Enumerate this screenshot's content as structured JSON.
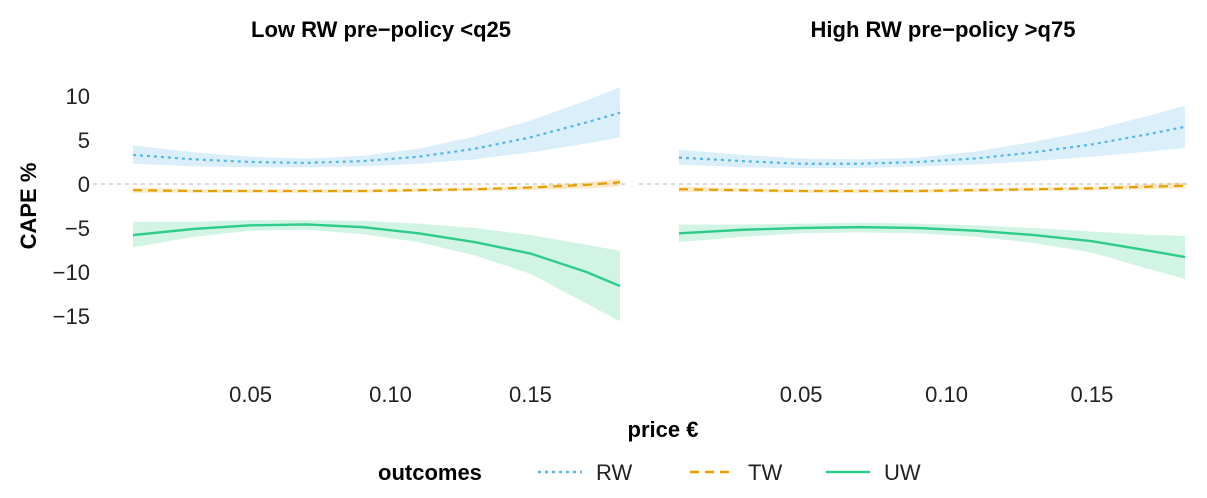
{
  "chart_data": {
    "type": "line",
    "xlabel": "price €",
    "ylabel": "CAPE %",
    "xlim": [
      0.008,
      0.182
    ],
    "ylim": [
      -20,
      11
    ],
    "x_ticks": [
      0.05,
      0.1,
      0.15
    ],
    "x_tick_labels": [
      "0.05",
      "0.10",
      "0.15"
    ],
    "y_ticks": [
      10,
      5,
      0,
      -5,
      -10,
      -15
    ],
    "y_tick_labels": [
      "10",
      "5",
      "0",
      "−5",
      "−10",
      "−15"
    ],
    "reference_line": 0,
    "grid": false,
    "legend": {
      "title": "outcomes",
      "position": "bottom",
      "entries": [
        {
          "name": "RW",
          "color": "#56B4E9",
          "linestyle": "dotted"
        },
        {
          "name": "TW",
          "color": "#E69F00",
          "linestyle": "dashed"
        },
        {
          "name": "UW",
          "color": "#2ECC8A",
          "linestyle": "solid"
        }
      ]
    },
    "panels": [
      {
        "title": "Low RW pre−policy <q25",
        "x": [
          0.008,
          0.03,
          0.05,
          0.07,
          0.09,
          0.11,
          0.13,
          0.15,
          0.17,
          0.182
        ],
        "series": [
          {
            "name": "RW",
            "values": [
              3.3,
              2.8,
              2.5,
              2.4,
              2.6,
              3.1,
              4.0,
              5.3,
              7.0,
              8.1
            ],
            "lower": [
              2.3,
              2.0,
              1.9,
              1.9,
              2.0,
              2.3,
              2.8,
              3.6,
              4.6,
              5.3
            ],
            "upper": [
              4.4,
              3.6,
              3.1,
              2.9,
              3.2,
              4.0,
              5.4,
              7.2,
              9.5,
              11.0
            ]
          },
          {
            "name": "TW",
            "values": [
              -0.7,
              -0.8,
              -0.8,
              -0.8,
              -0.8,
              -0.7,
              -0.6,
              -0.4,
              -0.1,
              0.2
            ],
            "lower": [
              -1.0,
              -1.0,
              -1.0,
              -1.0,
              -1.0,
              -0.9,
              -0.8,
              -0.7,
              -0.5,
              -0.3
            ],
            "upper": [
              -0.4,
              -0.6,
              -0.6,
              -0.6,
              -0.6,
              -0.5,
              -0.4,
              -0.2,
              0.2,
              0.6
            ]
          },
          {
            "name": "UW",
            "values": [
              -5.8,
              -5.1,
              -4.7,
              -4.6,
              -4.9,
              -5.6,
              -6.6,
              -7.9,
              -10.0,
              -11.6
            ],
            "lower": [
              -7.2,
              -6.0,
              -5.3,
              -5.2,
              -5.7,
              -6.6,
              -8.1,
              -10.2,
              -13.6,
              -15.6
            ],
            "upper": [
              -4.3,
              -4.3,
              -4.1,
              -4.1,
              -4.2,
              -4.5,
              -5.0,
              -5.8,
              -6.9,
              -7.6
            ]
          }
        ]
      },
      {
        "title": "High RW pre−policy >q75",
        "x": [
          0.008,
          0.03,
          0.05,
          0.07,
          0.09,
          0.11,
          0.13,
          0.15,
          0.17,
          0.182
        ],
        "series": [
          {
            "name": "RW",
            "values": [
              3.0,
              2.6,
              2.3,
              2.3,
              2.5,
              2.9,
              3.6,
              4.5,
              5.7,
              6.5
            ],
            "lower": [
              2.2,
              1.9,
              1.8,
              1.8,
              2.0,
              2.2,
              2.6,
              3.1,
              3.7,
              4.1
            ],
            "upper": [
              3.9,
              3.3,
              2.9,
              2.8,
              3.0,
              3.7,
              4.8,
              6.1,
              7.8,
              8.9
            ]
          },
          {
            "name": "TW",
            "values": [
              -0.6,
              -0.7,
              -0.8,
              -0.8,
              -0.8,
              -0.7,
              -0.6,
              -0.5,
              -0.3,
              -0.2
            ],
            "lower": [
              -0.9,
              -0.9,
              -1.0,
              -1.0,
              -1.0,
              -0.9,
              -0.8,
              -0.7,
              -0.6,
              -0.5
            ],
            "upper": [
              -0.3,
              -0.5,
              -0.6,
              -0.6,
              -0.6,
              -0.5,
              -0.4,
              -0.3,
              0.0,
              0.2
            ]
          },
          {
            "name": "UW",
            "values": [
              -5.6,
              -5.2,
              -5.0,
              -4.9,
              -5.0,
              -5.3,
              -5.8,
              -6.5,
              -7.6,
              -8.3
            ],
            "lower": [
              -6.6,
              -6.0,
              -5.6,
              -5.5,
              -5.6,
              -6.0,
              -6.7,
              -7.8,
              -9.7,
              -10.8
            ],
            "upper": [
              -4.6,
              -4.6,
              -4.5,
              -4.4,
              -4.5,
              -4.7,
              -5.0,
              -5.4,
              -5.8,
              -5.9
            ]
          }
        ]
      }
    ]
  }
}
